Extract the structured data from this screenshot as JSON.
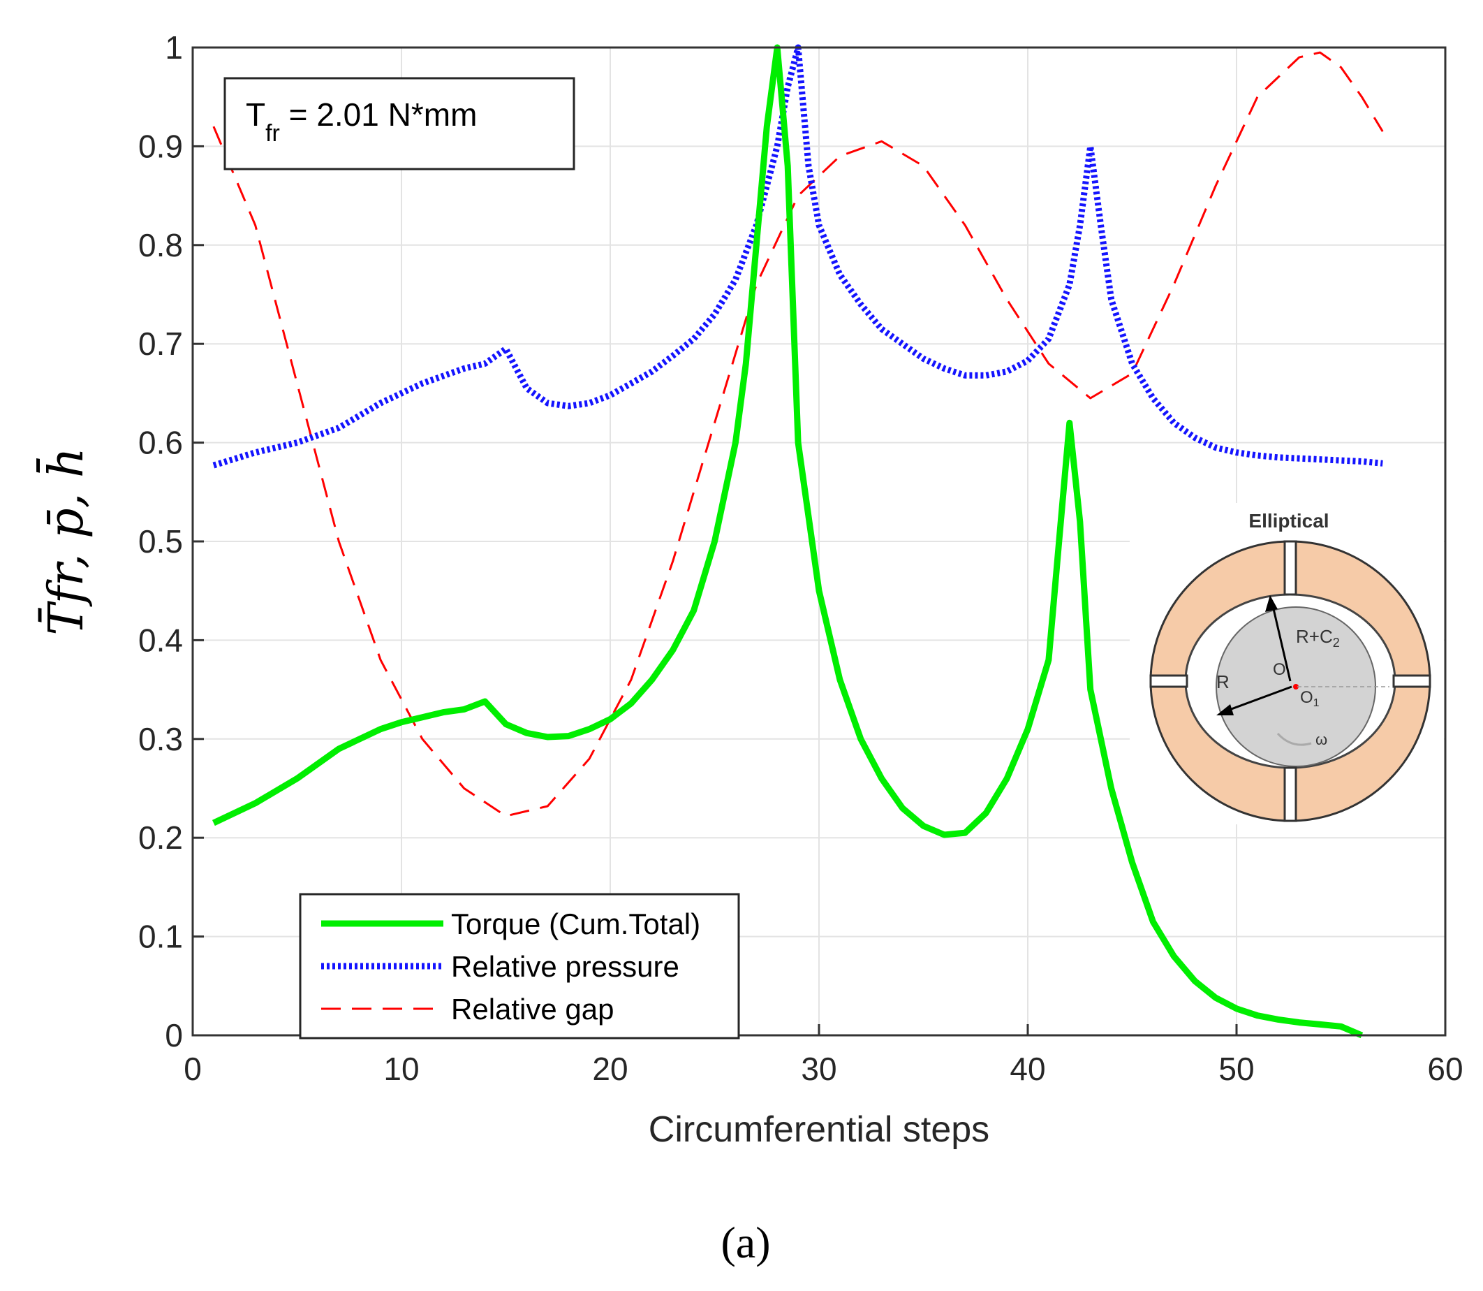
{
  "caption": "(a)",
  "annotation": {
    "symbol": "T",
    "subscript": "fr",
    "text": " = 2.01  N*mm"
  },
  "inset": {
    "title": "Elliptical",
    "labels": {
      "r_plus_c": "R+C",
      "r_plus_c_sub": "2",
      "r": "R",
      "o": "O",
      "o1": "O",
      "o1_sub": "1",
      "omega": "ω"
    },
    "colors": {
      "ring": "#f6cba8",
      "shaft": "#d3d3d3",
      "center": "#ff0000"
    }
  },
  "chart_data": {
    "type": "line",
    "title": "",
    "xlabel": "Circumferential steps",
    "ylabel": "T̄fr, p̄, h̄",
    "xlim": [
      0,
      60
    ],
    "ylim": [
      0,
      1
    ],
    "xticks": [
      0,
      10,
      20,
      30,
      40,
      50,
      60
    ],
    "yticks": [
      0,
      0.1,
      0.2,
      0.3,
      0.4,
      0.5,
      0.6,
      0.7,
      0.8,
      0.9,
      1
    ],
    "ytick_labels": [
      "0",
      "0.1",
      "0.2",
      "0.3",
      "0.4",
      "0.5",
      "0.6",
      "0.7",
      "0.8",
      "0.9",
      "1"
    ],
    "grid": true,
    "legend_position": "bottom-left",
    "series": [
      {
        "name": "Torque (Cum.Total)",
        "color": "#00ee00",
        "style": "solid",
        "x": [
          1,
          3,
          5,
          7,
          9,
          10,
          11,
          12,
          13,
          14,
          15,
          16,
          17,
          18,
          19,
          20,
          21,
          22,
          23,
          24,
          25,
          26,
          26.5,
          27,
          27.5,
          28,
          28.5,
          29,
          30,
          31,
          32,
          33,
          34,
          35,
          36,
          37,
          38,
          39,
          40,
          41,
          41.5,
          42,
          42.5,
          43,
          44,
          45,
          46,
          47,
          48,
          49,
          50,
          51,
          52,
          53,
          54,
          55,
          56
        ],
        "values": [
          0.215,
          0.235,
          0.26,
          0.29,
          0.31,
          0.317,
          0.322,
          0.327,
          0.33,
          0.338,
          0.315,
          0.306,
          0.302,
          0.303,
          0.31,
          0.32,
          0.336,
          0.36,
          0.39,
          0.43,
          0.5,
          0.6,
          0.68,
          0.8,
          0.92,
          1.0,
          0.88,
          0.6,
          0.45,
          0.36,
          0.3,
          0.26,
          0.23,
          0.212,
          0.203,
          0.205,
          0.225,
          0.26,
          0.31,
          0.38,
          0.5,
          0.62,
          0.52,
          0.35,
          0.25,
          0.175,
          0.115,
          0.08,
          0.055,
          0.038,
          0.027,
          0.02,
          0.016,
          0.013,
          0.011,
          0.009,
          0.0
        ]
      },
      {
        "name": "Relative pressure",
        "color": "#1414ff",
        "style": "dotted",
        "x": [
          1,
          3,
          5,
          7,
          9,
          11,
          13,
          14,
          15,
          16,
          17,
          18,
          19,
          20,
          21,
          22,
          23,
          24,
          25,
          26,
          27,
          28,
          28.5,
          29,
          29.5,
          30,
          31,
          32,
          33,
          34,
          35,
          36,
          37,
          38,
          39,
          40,
          41,
          42,
          42.5,
          43,
          43.5,
          44,
          45,
          46,
          47,
          48,
          49,
          50,
          51,
          52,
          53,
          54,
          55,
          56,
          57
        ],
        "values": [
          0.577,
          0.59,
          0.6,
          0.615,
          0.64,
          0.66,
          0.675,
          0.68,
          0.695,
          0.655,
          0.64,
          0.637,
          0.64,
          0.648,
          0.66,
          0.672,
          0.688,
          0.705,
          0.73,
          0.765,
          0.82,
          0.9,
          0.96,
          1.0,
          0.88,
          0.82,
          0.77,
          0.74,
          0.715,
          0.7,
          0.685,
          0.675,
          0.668,
          0.668,
          0.672,
          0.683,
          0.705,
          0.76,
          0.82,
          0.9,
          0.82,
          0.745,
          0.68,
          0.645,
          0.62,
          0.605,
          0.595,
          0.59,
          0.587,
          0.585,
          0.584,
          0.583,
          0.582,
          0.581,
          0.579
        ]
      },
      {
        "name": "Relative gap",
        "color": "#ff0000",
        "style": "dashed",
        "x": [
          1,
          3,
          5,
          7,
          9,
          11,
          13,
          15,
          17,
          19,
          21,
          23,
          25,
          27,
          29,
          31,
          33,
          35,
          37,
          39,
          41,
          43,
          45,
          47,
          49,
          51,
          53,
          54,
          55,
          56,
          57
        ],
        "values": [
          0.92,
          0.82,
          0.66,
          0.5,
          0.38,
          0.3,
          0.25,
          0.222,
          0.232,
          0.28,
          0.36,
          0.48,
          0.62,
          0.76,
          0.85,
          0.89,
          0.905,
          0.88,
          0.82,
          0.745,
          0.68,
          0.645,
          0.67,
          0.76,
          0.86,
          0.95,
          0.99,
          0.995,
          0.98,
          0.95,
          0.915
        ]
      }
    ]
  }
}
